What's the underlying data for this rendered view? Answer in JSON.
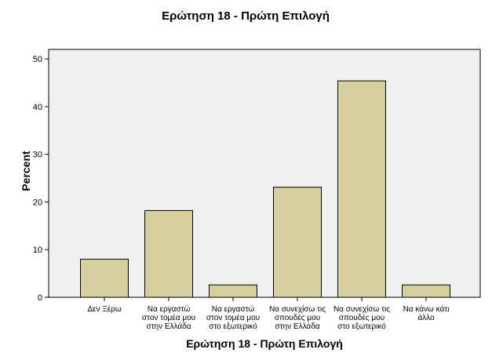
{
  "chart_data": {
    "type": "bar",
    "title": "Ερώτηση 18 - Πρώτη Επιλογή",
    "xlabel": "Ερώτηση 18 - Πρώτη Επιλογή",
    "ylabel": "Percent",
    "categories": [
      [
        "Δεν Ξέρω"
      ],
      [
        "Να εργαστώ",
        "στον τομέα μου",
        "στην Ελλάδα"
      ],
      [
        "Να εργαστώ",
        "στον τομέα μου",
        "στο εξωτερικό"
      ],
      [
        "Να συνεχίσω τις",
        "σπουδές μου",
        "στην Ελλάδα"
      ],
      [
        "Να συνεχίσω τις",
        "σπουδές μου",
        "στο εξωτερικό"
      ],
      [
        "Να κάνω κάτι",
        "άλλο"
      ]
    ],
    "values": [
      8.0,
      18.2,
      2.6,
      23.1,
      45.4,
      2.6
    ],
    "ylim": [
      0,
      52
    ],
    "yticks": [
      0,
      10,
      20,
      30,
      40,
      50
    ],
    "grid": false,
    "legend": "none",
    "colors": {
      "bar_fill": "#d4cf9d",
      "bar_stroke": "#000000",
      "plot_background": "#f0f0f0",
      "plot_border": "#000000"
    }
  }
}
